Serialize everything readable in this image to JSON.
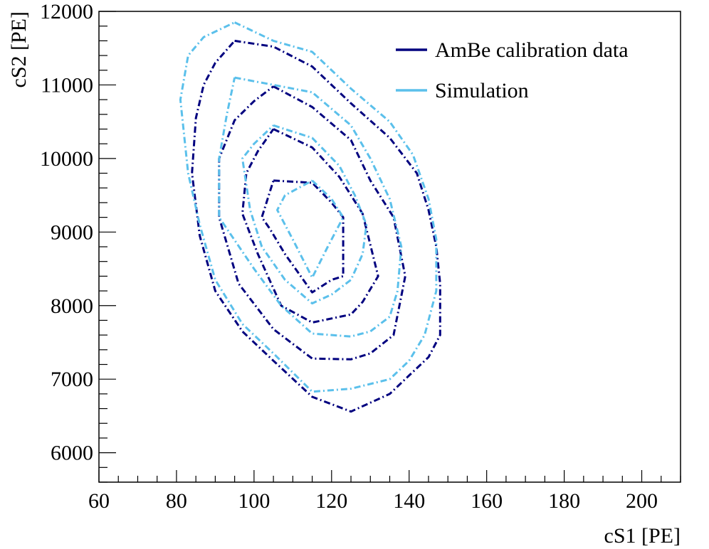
{
  "chart_data": {
    "type": "line",
    "subtype": "contour",
    "title": "",
    "xlabel": "cS1  [PE]",
    "ylabel": "cS2  [PE]",
    "xlim": [
      60,
      210
    ],
    "ylim": [
      5600,
      12000
    ],
    "x_ticks": [
      60,
      80,
      100,
      120,
      140,
      160,
      180,
      200
    ],
    "y_ticks": [
      6000,
      7000,
      8000,
      9000,
      10000,
      11000,
      12000
    ],
    "x_tick_labels": [
      "60",
      "80",
      "100",
      "120",
      "140",
      "160",
      "180",
      "200"
    ],
    "y_tick_labels": [
      "6000",
      "7000",
      "8000",
      "9000",
      "10000",
      "11000",
      "12000"
    ],
    "grid": false,
    "legend_position": "top-right",
    "line_style": "dash-dot",
    "series": [
      {
        "name": "AmBe calibration data",
        "color": "#00007f",
        "contours": [
          [
            [
              95,
              11600
            ],
            [
              105,
              11520
            ],
            [
              115,
              11250
            ],
            [
              125,
              10750
            ],
            [
              135,
              10280
            ],
            [
              142,
              9800
            ],
            [
              145,
              9300
            ],
            [
              147,
              8800
            ],
            [
              148,
              8300
            ],
            [
              148,
              7600
            ],
            [
              145,
              7300
            ],
            [
              140,
              7050
            ],
            [
              135,
              6800
            ],
            [
              125,
              6560
            ],
            [
              115,
              6760
            ],
            [
              105,
              7250
            ],
            [
              97,
              7650
            ],
            [
              90,
              8200
            ],
            [
              86,
              8950
            ],
            [
              84,
              9800
            ],
            [
              85,
              10550
            ],
            [
              87,
              11000
            ],
            [
              90,
              11300
            ],
            [
              95,
              11600
            ]
          ],
          [
            [
              105,
              10980
            ],
            [
              115,
              10700
            ],
            [
              125,
              10250
            ],
            [
              130,
              9700
            ],
            [
              136,
              9200
            ],
            [
              139,
              8400
            ],
            [
              136,
              7600
            ],
            [
              130,
              7350
            ],
            [
              125,
              7270
            ],
            [
              115,
              7280
            ],
            [
              105,
              7680
            ],
            [
              96,
              8300
            ],
            [
              91,
              9200
            ],
            [
              91,
              10000
            ],
            [
              95,
              10520
            ],
            [
              100,
              10780
            ],
            [
              105,
              10980
            ]
          ],
          [
            [
              105,
              10400
            ],
            [
              115,
              10150
            ],
            [
              122,
              9750
            ],
            [
              128,
              9250
            ],
            [
              132,
              8400
            ],
            [
              128,
              8050
            ],
            [
              125,
              7880
            ],
            [
              115,
              7770
            ],
            [
              107,
              8000
            ],
            [
              101,
              8700
            ],
            [
              97,
              9250
            ],
            [
              98,
              9800
            ],
            [
              101,
              10100
            ],
            [
              105,
              10400
            ]
          ],
          [
            [
              105,
              9700
            ],
            [
              115,
              9670
            ],
            [
              120,
              9400
            ],
            [
              123,
              9200
            ],
            [
              123,
              8400
            ],
            [
              120,
              8350
            ],
            [
              115,
              8180
            ],
            [
              108,
              8700
            ],
            [
              104,
              9050
            ],
            [
              102,
              9200
            ],
            [
              105,
              9700
            ]
          ]
        ]
      },
      {
        "name": "Simulation",
        "color": "#5bc0eb",
        "contours": [
          [
            [
              95,
              11850
            ],
            [
              105,
              11600
            ],
            [
              115,
              11450
            ],
            [
              125,
              10950
            ],
            [
              135,
              10500
            ],
            [
              141,
              10050
            ],
            [
              145,
              9450
            ],
            [
              147,
              8900
            ],
            [
              147,
              8200
            ],
            [
              144,
              7600
            ],
            [
              140,
              7250
            ],
            [
              135,
              7000
            ],
            [
              125,
              6870
            ],
            [
              115,
              6830
            ],
            [
              105,
              7350
            ],
            [
              97,
              7750
            ],
            [
              90,
              8350
            ],
            [
              86,
              9100
            ],
            [
              83,
              9800
            ],
            [
              81,
              10800
            ],
            [
              83,
              11400
            ],
            [
              87,
              11650
            ],
            [
              95,
              11850
            ]
          ],
          [
            [
              95,
              11100
            ],
            [
              105,
              11000
            ],
            [
              115,
              10900
            ],
            [
              125,
              10450
            ],
            [
              130,
              10000
            ],
            [
              135,
              9450
            ],
            [
              138,
              8800
            ],
            [
              137,
              8200
            ],
            [
              135,
              7850
            ],
            [
              130,
              7650
            ],
            [
              125,
              7580
            ],
            [
              115,
              7620
            ],
            [
              107,
              8000
            ],
            [
              100,
              8500
            ],
            [
              91,
              9200
            ],
            [
              91,
              10000
            ],
            [
              93,
              10600
            ],
            [
              95,
              11100
            ]
          ],
          [
            [
              105,
              10450
            ],
            [
              115,
              10280
            ],
            [
              122,
              9900
            ],
            [
              126,
              9500
            ],
            [
              129,
              9100
            ],
            [
              128,
              8700
            ],
            [
              125,
              8350
            ],
            [
              120,
              8150
            ],
            [
              115,
              8030
            ],
            [
              108,
              8350
            ],
            [
              102,
              8800
            ],
            [
              99,
              9300
            ],
            [
              97,
              10000
            ],
            [
              100,
              10200
            ],
            [
              105,
              10450
            ]
          ],
          [
            [
              115,
              9700
            ],
            [
              120,
              9450
            ],
            [
              123,
              9200
            ],
            [
              119,
              8800
            ],
            [
              115,
              8380
            ],
            [
              110,
              8900
            ],
            [
              106,
              9300
            ],
            [
              108,
              9500
            ],
            [
              115,
              9700
            ]
          ]
        ]
      }
    ]
  }
}
